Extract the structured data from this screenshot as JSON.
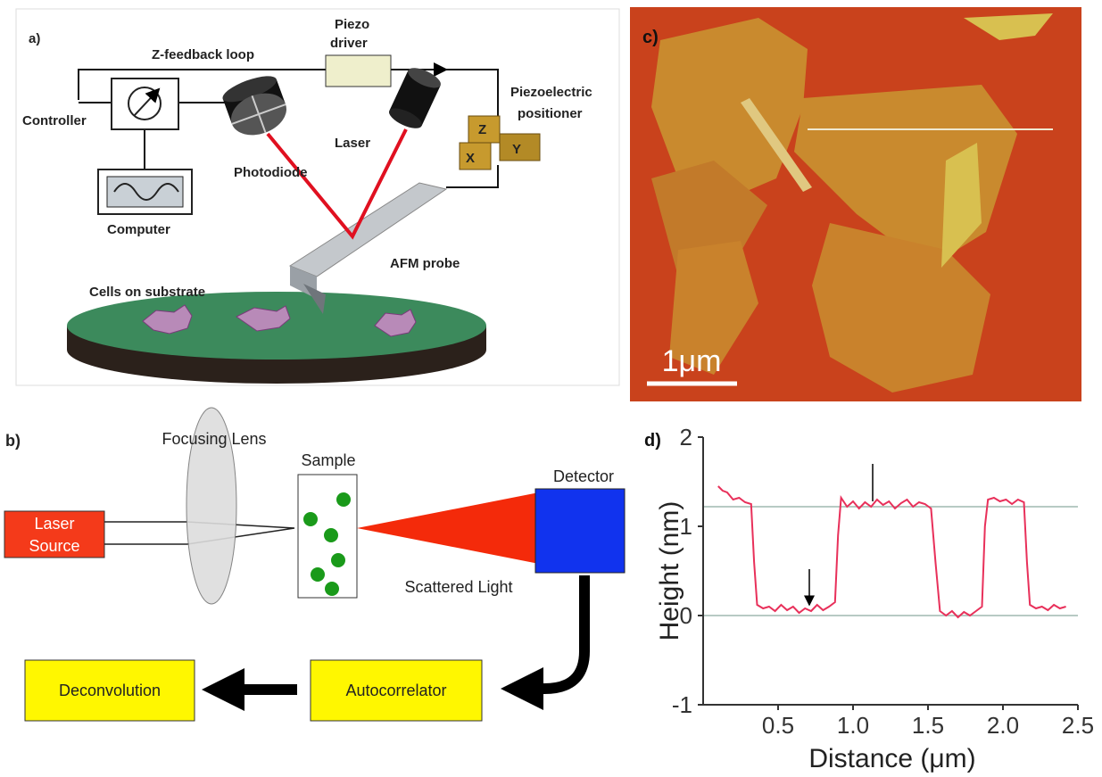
{
  "panel_a": {
    "label": "a)",
    "labels": [
      "Z-feedback loop",
      "Piezo",
      "driver",
      "Controller",
      "Photodiode",
      "Laser",
      "Piezoelectric",
      "positioner",
      "Computer",
      "AFM probe",
      "Cells on substrate",
      "Z",
      "Y",
      "X"
    ]
  },
  "panel_b": {
    "label": "b)",
    "focusing_lens": "Focusing Lens",
    "sample": "Sample",
    "detector": "Detector",
    "laser_source": [
      "Laser",
      "Source"
    ],
    "scattered_light": "Scattered Light",
    "autocorrelator": "Autocorrelator",
    "deconvolution": "Deconvolution"
  },
  "panel_c": {
    "label": "c)",
    "scale_bar": "1μm"
  },
  "chart_data": {
    "type": "line",
    "label": "d)",
    "xlabel": "Distance (μm)",
    "ylabel": "Height (nm)",
    "color": "#e8305a",
    "xlim": [
      0,
      2.5
    ],
    "ylim": [
      -1,
      2
    ],
    "xticks": [
      0.5,
      {
        "value": 1,
        "label": "1.0"
      },
      1.5,
      {
        "value": 2,
        "label": "2.0"
      },
      2.5
    ],
    "yticks": [
      -1,
      0,
      1,
      2
    ],
    "reference_lines": [
      0,
      1.22
    ],
    "x": [
      0.1,
      0.13,
      0.16,
      0.2,
      0.24,
      0.28,
      0.32,
      0.34,
      0.36,
      0.4,
      0.44,
      0.48,
      0.52,
      0.56,
      0.6,
      0.64,
      0.68,
      0.72,
      0.76,
      0.8,
      0.84,
      0.88,
      0.9,
      0.92,
      0.96,
      1.0,
      1.04,
      1.08,
      1.12,
      1.16,
      1.2,
      1.24,
      1.28,
      1.32,
      1.36,
      1.4,
      1.44,
      1.48,
      1.52,
      1.55,
      1.58,
      1.62,
      1.66,
      1.7,
      1.74,
      1.78,
      1.82,
      1.86,
      1.88,
      1.9,
      1.94,
      1.98,
      2.02,
      2.06,
      2.1,
      2.14,
      2.16,
      2.18,
      2.22,
      2.26,
      2.3,
      2.34,
      2.38,
      2.42
    ],
    "values": [
      1.45,
      1.4,
      1.38,
      1.3,
      1.32,
      1.27,
      1.25,
      0.6,
      0.12,
      0.08,
      0.1,
      0.05,
      0.12,
      0.06,
      0.1,
      0.03,
      0.08,
      0.05,
      0.12,
      0.06,
      0.1,
      0.15,
      0.9,
      1.32,
      1.22,
      1.28,
      1.2,
      1.27,
      1.22,
      1.3,
      1.24,
      1.28,
      1.2,
      1.26,
      1.3,
      1.22,
      1.27,
      1.25,
      1.2,
      0.6,
      0.05,
      0.0,
      0.05,
      -0.02,
      0.04,
      0.0,
      0.05,
      0.1,
      1.0,
      1.3,
      1.32,
      1.28,
      1.3,
      1.25,
      1.3,
      1.27,
      0.6,
      0.12,
      0.08,
      0.1,
      0.06,
      0.12,
      0.08,
      0.1
    ]
  }
}
